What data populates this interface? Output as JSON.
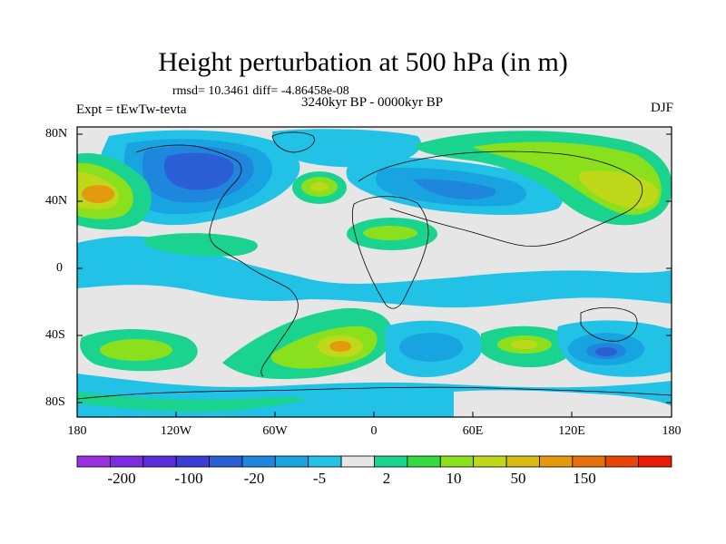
{
  "title": "Height perturbation at 500 hPa (in m)",
  "stat_line": "rmsd= 10.3461 diff= -4.86458e-08",
  "subtitle": "3240kyr BP - 0000kyr BP",
  "experiment": "Expt = tEwTw-tevta",
  "season": "DJF",
  "y_ticks": [
    "80N",
    "40N",
    "0",
    "40S",
    "80S"
  ],
  "x_ticks": [
    "180",
    "120W",
    "60W",
    "0",
    "60E",
    "120E",
    "180"
  ],
  "colorbar": {
    "colors": [
      "#9a2fdf",
      "#7b2be0",
      "#5a2fd8",
      "#3b3ed3",
      "#2b5fd6",
      "#1f86dd",
      "#18a4e1",
      "#22c1e6",
      "#e6e6e6",
      "#19d38f",
      "#35d942",
      "#8be01d",
      "#c0d81a",
      "#d7bc13",
      "#e49a0e",
      "#e76f0b",
      "#e94408",
      "#e81a08"
    ],
    "labels": [
      "-200",
      "-100",
      "-20",
      "-5",
      "2",
      "10",
      "50",
      "150"
    ]
  },
  "palette": {
    "neutral": "#e6e6e6",
    "blue_deep": "#2b5fd6",
    "blue_mid": "#1f86dd",
    "blue_light": "#18a4e1",
    "cyan": "#22c1e6",
    "green": "#19d38f",
    "yellow_green": "#8be01d",
    "yellow": "#c0d81a",
    "orange": "#e49a0e"
  }
}
